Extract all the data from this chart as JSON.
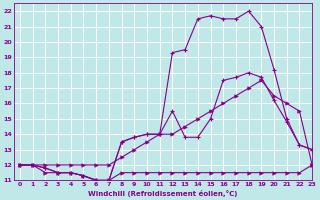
{
  "xlabel": "Windchill (Refroidissement éolien,°C)",
  "xlim": [
    -0.5,
    23
  ],
  "ylim": [
    11,
    22.5
  ],
  "xticks": [
    0,
    1,
    2,
    3,
    4,
    5,
    6,
    7,
    8,
    9,
    10,
    11,
    12,
    13,
    14,
    15,
    16,
    17,
    18,
    19,
    20,
    21,
    22,
    23
  ],
  "yticks": [
    11,
    12,
    13,
    14,
    15,
    16,
    17,
    18,
    19,
    20,
    21,
    22
  ],
  "bg_color": "#c0e8e8",
  "line_color": "#880088",
  "grid_color": "#ffffff",
  "line1_x": [
    0,
    1,
    2,
    3,
    4,
    5,
    6,
    7,
    8,
    9,
    10,
    11,
    12,
    13,
    14,
    15,
    16,
    17,
    18,
    19,
    20,
    21,
    22,
    23
  ],
  "line1_y": [
    12,
    12,
    11.5,
    11.5,
    11.5,
    11.3,
    11.0,
    11.0,
    11.5,
    11.5,
    11.5,
    11.5,
    11.5,
    11.5,
    11.5,
    11.5,
    11.5,
    11.5,
    11.5,
    11.5,
    11.5,
    11.5,
    11.5,
    12
  ],
  "line2_x": [
    0,
    1,
    2,
    3,
    4,
    5,
    6,
    7,
    8,
    9,
    10,
    11,
    12,
    13,
    14,
    15,
    16,
    17,
    18,
    19,
    20,
    21,
    22,
    23
  ],
  "line2_y": [
    12,
    12,
    12,
    12,
    12,
    12,
    12,
    12,
    12.5,
    13,
    13.5,
    14,
    14.0,
    14.5,
    15.0,
    15.5,
    16.0,
    16.5,
    17.0,
    17.5,
    16.5,
    16.0,
    15.5,
    12
  ],
  "line3_x": [
    0,
    1,
    2,
    3,
    4,
    5,
    6,
    7,
    8,
    9,
    10,
    11,
    12,
    13,
    14,
    15,
    16,
    17,
    18,
    19,
    20,
    21,
    22,
    23
  ],
  "line3_y": [
    12,
    12,
    11.8,
    11.5,
    11.5,
    11.3,
    11.0,
    11.0,
    13.5,
    13.8,
    14.0,
    14.0,
    15.5,
    13.8,
    13.8,
    15.0,
    17.5,
    17.7,
    18.0,
    17.7,
    16.2,
    14.8,
    13.3,
    13.0
  ],
  "line4_x": [
    0,
    1,
    2,
    3,
    4,
    5,
    6,
    7,
    8,
    9,
    10,
    11,
    12,
    13,
    14,
    15,
    16,
    17,
    18,
    19,
    20,
    21,
    22,
    23
  ],
  "line4_y": [
    12,
    12,
    11.8,
    11.5,
    11.5,
    11.3,
    11.0,
    11.0,
    13.5,
    13.8,
    14.0,
    14.0,
    19.3,
    19.5,
    21.5,
    21.7,
    21.5,
    21.5,
    22.0,
    21.0,
    18.2,
    15.0,
    13.3,
    13.0
  ]
}
